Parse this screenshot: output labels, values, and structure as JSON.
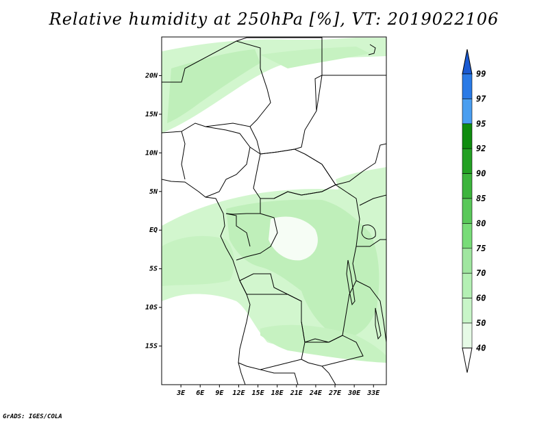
{
  "title": "Relative humidity at 250hPa [%], VT: 2019022106",
  "footer": "GrADS: IGES/COLA",
  "map": {
    "lon_range": [
      0,
      35
    ],
    "lat_range": [
      -20,
      25
    ],
    "lat_ticks": [
      "20N",
      "15N",
      "10N",
      "5N",
      "EQ",
      "5S",
      "10S",
      "15S"
    ],
    "lat_values": [
      20,
      15,
      10,
      5,
      0,
      -5,
      -10,
      -15
    ],
    "lon_ticks": [
      "3E",
      "6E",
      "9E",
      "12E",
      "15E",
      "18E",
      "21E",
      "24E",
      "27E",
      "30E",
      "33E"
    ],
    "lon_values": [
      3,
      6,
      9,
      12,
      15,
      18,
      21,
      24,
      27,
      30,
      33
    ]
  },
  "colorbar": {
    "levels": [
      "40",
      "50",
      "60",
      "70",
      "75",
      "80",
      "85",
      "90",
      "92",
      "95",
      "97",
      "99"
    ],
    "colors": [
      "#ffffff",
      "#e6fae6",
      "#c8f5c8",
      "#b4f0b4",
      "#a0e6a0",
      "#78dc78",
      "#5ac85a",
      "#3cb43c",
      "#23a023",
      "#0f8c0f",
      "#4a9ef0",
      "#2a7ae6",
      "#1a5ad2"
    ]
  },
  "colors": {
    "light_green": "#ccf4c8",
    "mid_green": "#b5ecb0",
    "deep_green": "#9fe39a"
  }
}
